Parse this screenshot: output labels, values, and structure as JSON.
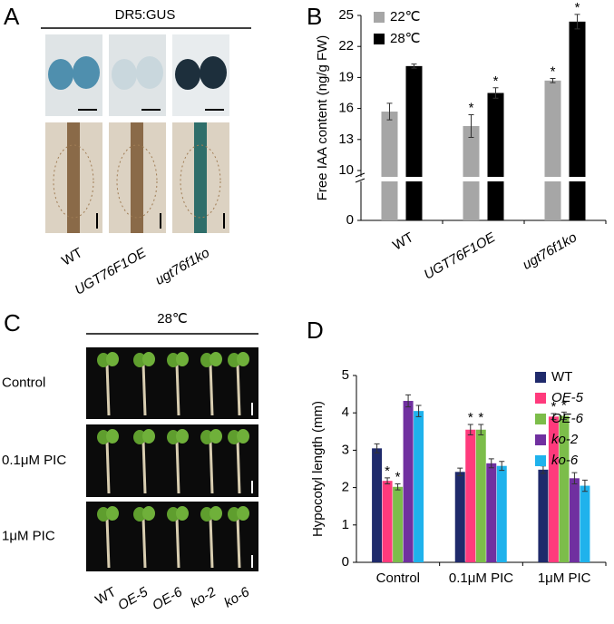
{
  "panel_a": {
    "label": "A",
    "title": "DR5:GUS",
    "genotypes": [
      "WT",
      "UGT76F1OE",
      "ugt76f1ko"
    ]
  },
  "panel_c": {
    "label": "C",
    "title": "28℃",
    "treatments": [
      "Control",
      "0.1μM PIC",
      "1μM PIC"
    ],
    "genotypes": [
      "WT",
      "OE-5",
      "OE-6",
      "ko-2",
      "ko-6"
    ]
  },
  "chart_data": [
    {
      "type": "bar",
      "panel_label": "B",
      "y_label": "Free IAA content (ng/g FW)",
      "categories": [
        "WT",
        "UGT76F1OE",
        "ugt76f1ko"
      ],
      "series": [
        {
          "name": "22℃",
          "color": "#a6a6a6",
          "values": [
            15.7,
            14.3,
            18.7
          ],
          "errors": [
            0.8,
            1.1,
            0.2
          ],
          "annotations": [
            null,
            "*",
            "*"
          ]
        },
        {
          "name": "28℃",
          "color": "#000000",
          "values": [
            20.1,
            17.5,
            24.4
          ],
          "errors": [
            0.2,
            0.5,
            0.7
          ],
          "annotations": [
            null,
            "*",
            "*"
          ]
        }
      ],
      "ylim": [
        0,
        25
      ],
      "axis_break": [
        4,
        10
      ],
      "yticks": [
        0,
        10,
        13,
        16,
        19,
        22,
        25
      ],
      "legend": "upper left"
    },
    {
      "type": "bar",
      "panel_label": "D",
      "y_label": "Hypocotyl length (mm)",
      "categories": [
        "Control",
        "0.1μM PIC",
        "1μM PIC"
      ],
      "series": [
        {
          "name": "WT",
          "color": "#1f2a6b",
          "values": [
            3.05,
            2.42,
            2.48
          ],
          "errors": [
            0.12,
            0.1,
            0.1
          ],
          "annotations": [
            null,
            null,
            null
          ]
        },
        {
          "name": "OE-5",
          "color": "#ff3a7c",
          "values": [
            2.18,
            3.55,
            3.9
          ],
          "errors": [
            0.08,
            0.14,
            0.08
          ],
          "annotations": [
            "*",
            "*",
            "*"
          ]
        },
        {
          "name": "OE-6",
          "color": "#7cbd4a",
          "values": [
            2.02,
            3.55,
            3.92
          ],
          "errors": [
            0.08,
            0.14,
            0.1
          ],
          "annotations": [
            "*",
            "*",
            "*"
          ]
        },
        {
          "name": "ko-2",
          "color": "#7030a0",
          "values": [
            4.32,
            2.65,
            2.25
          ],
          "errors": [
            0.16,
            0.12,
            0.15
          ],
          "annotations": [
            null,
            null,
            null
          ]
        },
        {
          "name": "ko-6",
          "color": "#1fb2ec",
          "values": [
            4.05,
            2.58,
            2.05
          ],
          "errors": [
            0.15,
            0.12,
            0.15
          ],
          "annotations": [
            null,
            null,
            null
          ]
        }
      ],
      "ylim": [
        0,
        5
      ],
      "yticks": [
        0,
        1,
        2,
        3,
        4,
        5
      ],
      "legend": "upper right"
    }
  ]
}
